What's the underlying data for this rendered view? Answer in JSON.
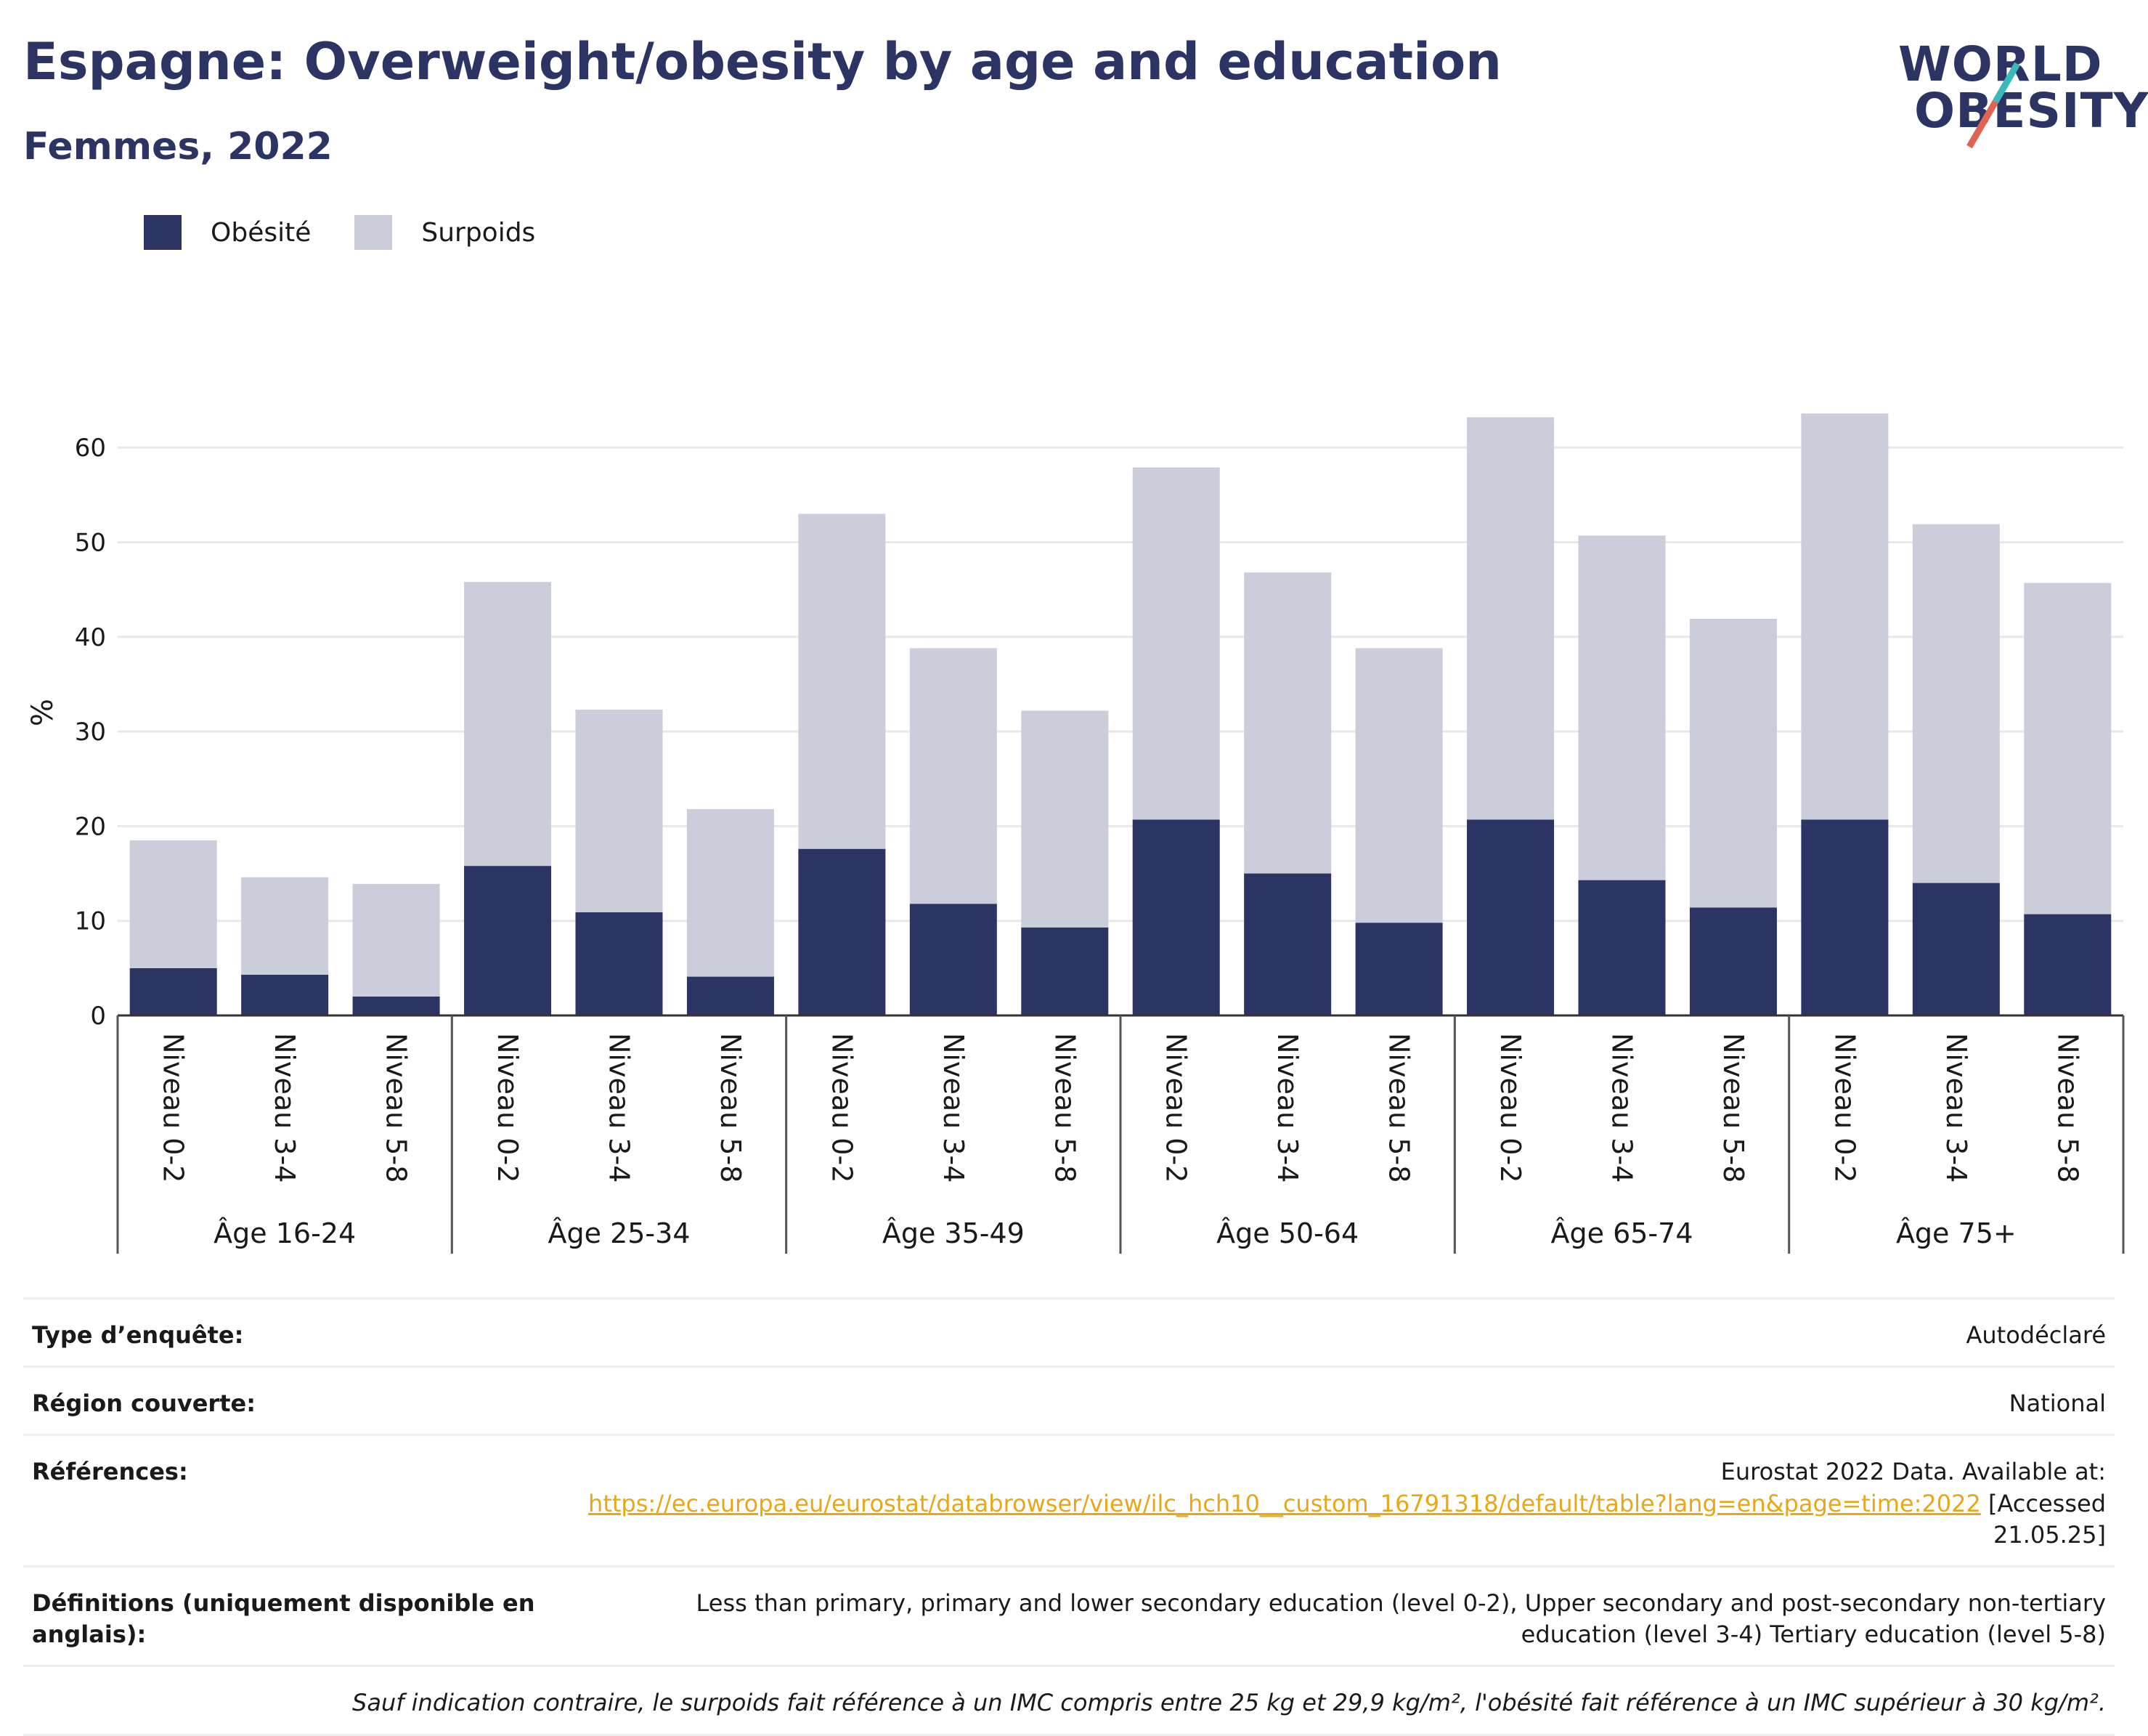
{
  "header": {
    "title": "Espagne: Overweight/obesity by age and education",
    "subtitle": "Femmes, 2022"
  },
  "logo": {
    "line1": "WORLD",
    "line2": "OBESITY",
    "accent_colors": [
      "#3bb8b9",
      "#e06452"
    ]
  },
  "legend": [
    {
      "label": "Obésité",
      "color": "#2b3462"
    },
    {
      "label": "Surpoids",
      "color": "#cbcdda"
    }
  ],
  "chart_data": {
    "type": "bar",
    "stacked": true,
    "title": "",
    "ylabel": "%",
    "ylim": [
      0,
      65
    ],
    "yticks": [
      0,
      10,
      20,
      30,
      40,
      50,
      60
    ],
    "grid": true,
    "legend_position": "top-left",
    "groups": [
      "Âge 16-24",
      "Âge 25-34",
      "Âge 35-49",
      "Âge 50-64",
      "Âge 65-74",
      "Âge 75+"
    ],
    "categories": [
      "Niveau 0-2",
      "Niveau 3-4",
      "Niveau 5-8"
    ],
    "series": [
      {
        "name": "Obésité",
        "color": "#2b3462",
        "values": [
          [
            5.0,
            4.3,
            2.0
          ],
          [
            15.8,
            10.9,
            4.1
          ],
          [
            17.6,
            11.8,
            9.3
          ],
          [
            20.7,
            15.0,
            9.8
          ],
          [
            20.7,
            14.3,
            11.4
          ],
          [
            20.7,
            14.0,
            10.7
          ]
        ]
      },
      {
        "name": "Surpoids",
        "color": "#cbcdda",
        "values": [
          [
            13.5,
            10.3,
            11.9
          ],
          [
            30.0,
            21.4,
            17.7
          ],
          [
            35.4,
            27.0,
            22.9
          ],
          [
            37.2,
            31.8,
            29.0
          ],
          [
            42.5,
            36.4,
            30.5
          ],
          [
            42.9,
            37.9,
            35.0
          ]
        ]
      }
    ]
  },
  "info": {
    "survey_type_label": "Type d’enquête:",
    "survey_type_value": "Autodéclaré",
    "region_label": "Région couverte:",
    "region_value": "National",
    "references_label": "Références:",
    "references_text": "Eurostat 2022 Data. Available at:",
    "references_link": "https://ec.europa.eu/eurostat/databrowser/view/ilc_hch10__custom_16791318/default/table?lang=en&page=time:2022",
    "references_accessed": "[Accessed 21.05.25]",
    "definitions_label": "Définitions (uniquement disponible en anglais):",
    "definitions_value": "Less than primary, primary and lower secondary education (level 0-2), Upper secondary and post-secondary non-tertiary education (level 3-4) Tertiary education (level 5-8)",
    "footnote": "Sauf indication contraire, le surpoids fait référence à un IMC compris entre 25 kg et 29,9 kg/m², l'obésité fait référence à un IMC supérieur à 30 kg/m²."
  }
}
